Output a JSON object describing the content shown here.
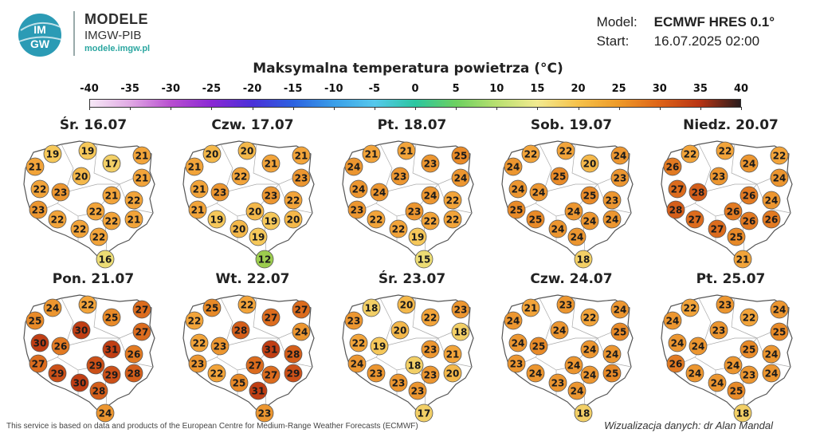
{
  "brand": {
    "logo_text_top": "IM",
    "logo_text_bottom": "GW",
    "title": "MODELE",
    "subtitle": "IMGW-PIB",
    "url": "modele.imgw.pl"
  },
  "meta": {
    "model_label": "Model:",
    "model_value": "ECMWF HRES 0.1°",
    "start_label": "Start:",
    "start_value": "16.07.2025 02:00"
  },
  "map_title": "Maksymalna temperatura powietrza (°C)",
  "scale": {
    "ticks": [
      "-40",
      "-35",
      "-30",
      "-25",
      "-20",
      "-15",
      "-10",
      "-5",
      "0",
      "5",
      "10",
      "15",
      "20",
      "25",
      "30",
      "35",
      "40"
    ]
  },
  "colors": {
    "t12": "#9ccc4e",
    "t15_16": "#ecdc74",
    "t17_18": "#f2cf66",
    "t19": "#f6c85a",
    "t20": "#f4b84a",
    "t21_22": "#f2a43a",
    "t23_24": "#ec9630",
    "t25": "#e88a28",
    "t26": "#e27a22",
    "t27": "#dc6c1e",
    "t28": "#d45e1a",
    "t29": "#cc5018",
    "t30_31": "#c03e14",
    "map_fill": "#ffffff",
    "map_border": "#555555",
    "region_border": "#aaaaaa"
  },
  "days": [
    {
      "label": "Śr. 16.07",
      "values": [
        "19",
        "19",
        "17",
        "21",
        "21",
        "21",
        "20",
        "22",
        "23",
        "21",
        "23",
        "22",
        "22",
        "22",
        "22",
        "22",
        "21",
        "22",
        "16"
      ]
    },
    {
      "label": "Czw. 17.07",
      "values": [
        "20",
        "20",
        "21",
        "21",
        "21",
        "23",
        "22",
        "21",
        "23",
        "23",
        "21",
        "20",
        "22",
        "19",
        "20",
        "19",
        "20",
        "19",
        "12"
      ]
    },
    {
      "label": "Pt. 18.07",
      "values": [
        "21",
        "21",
        "23",
        "25",
        "24",
        "24",
        "23",
        "24",
        "24",
        "24",
        "23",
        "23",
        "22",
        "22",
        "22",
        "22",
        "22",
        "19",
        "15"
      ]
    },
    {
      "label": "Sob. 19.07",
      "values": [
        "22",
        "22",
        "20",
        "24",
        "24",
        "23",
        "25",
        "24",
        "24",
        "25",
        "25",
        "24",
        "23",
        "25",
        "24",
        "24",
        "24",
        "24",
        "18"
      ]
    },
    {
      "label": "Niedz. 20.07",
      "values": [
        "22",
        "22",
        "24",
        "22",
        "26",
        "24",
        "23",
        "27",
        "28",
        "26",
        "28",
        "26",
        "24",
        "27",
        "27",
        "26",
        "26",
        "25",
        "21"
      ]
    },
    {
      "label": "Pon. 21.07",
      "values": [
        "24",
        "22",
        "25",
        "27",
        "25",
        "27",
        "30",
        "30",
        "26",
        "31",
        "27",
        "29",
        "26",
        "29",
        "30",
        "29",
        "28",
        "28",
        "24"
      ]
    },
    {
      "label": "Wt. 22.07",
      "values": [
        "25",
        "22",
        "27",
        "27",
        "22",
        "24",
        "28",
        "22",
        "23",
        "31",
        "23",
        "27",
        "28",
        "22",
        "25",
        "27",
        "29",
        "31",
        "23"
      ]
    },
    {
      "label": "Śr. 23.07",
      "values": [
        "18",
        "20",
        "22",
        "23",
        "23",
        "18",
        "20",
        "22",
        "19",
        "23",
        "24",
        "18",
        "21",
        "23",
        "23",
        "23",
        "20",
        "23",
        "17"
      ]
    },
    {
      "label": "Czw. 24.07",
      "values": [
        "21",
        "23",
        "22",
        "24",
        "24",
        "25",
        "24",
        "24",
        "25",
        "24",
        "23",
        "24",
        "24",
        "24",
        "23",
        "24",
        "25",
        "24",
        "18"
      ]
    },
    {
      "label": "Pt. 25.07",
      "values": [
        "22",
        "23",
        "22",
        "24",
        "24",
        "25",
        "23",
        "24",
        "24",
        "25",
        "26",
        "24",
        "24",
        "24",
        "24",
        "23",
        "24",
        "25",
        "18"
      ]
    }
  ],
  "footer": {
    "left": "This service is based on data and products of the European Centre for Medium-Range Weather Forecasts (ECMWF)",
    "right": "Wizualizacja danych: dr Alan Mandal"
  }
}
